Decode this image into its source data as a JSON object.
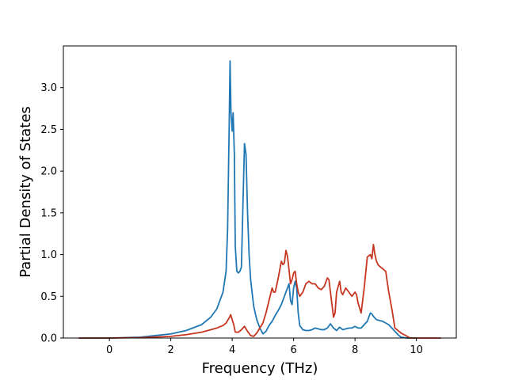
{
  "chart_data": {
    "type": "line",
    "xlabel": "Frequency (THz)",
    "ylabel": "Partial Density of States",
    "xlim": [
      -1.5,
      11.3
    ],
    "ylim": [
      0,
      3.5
    ],
    "xticks": [
      0,
      2,
      4,
      6,
      8,
      10
    ],
    "xtick_labels": [
      "0",
      "2",
      "4",
      "6",
      "8",
      "10"
    ],
    "yticks": [
      0,
      0.5,
      1.0,
      1.5,
      2.0,
      2.5,
      3.0
    ],
    "ytick_labels": [
      "0.0",
      "0.5",
      "1.0",
      "1.5",
      "2.0",
      "2.5",
      "3.0"
    ],
    "grid": false,
    "series": [
      {
        "color": "#1f77b4",
        "x": [
          -1.0,
          0.0,
          1.0,
          2.0,
          2.5,
          3.0,
          3.3,
          3.5,
          3.7,
          3.8,
          3.85,
          3.9,
          3.93,
          3.96,
          4.0,
          4.03,
          4.07,
          4.1,
          4.15,
          4.2,
          4.25,
          4.3,
          4.35,
          4.4,
          4.45,
          4.5,
          4.55,
          4.6,
          4.7,
          4.8,
          4.9,
          5.0,
          5.1,
          5.2,
          5.3,
          5.4,
          5.5,
          5.6,
          5.7,
          5.8,
          5.85,
          5.9,
          5.95,
          6.0,
          6.05,
          6.1,
          6.15,
          6.2,
          6.3,
          6.4,
          6.5,
          6.6,
          6.7,
          6.8,
          6.9,
          7.0,
          7.1,
          7.2,
          7.3,
          7.4,
          7.5,
          7.6,
          7.7,
          7.8,
          7.9,
          8.0,
          8.1,
          8.2,
          8.3,
          8.4,
          8.5,
          8.55,
          8.6,
          8.7,
          8.8,
          8.9,
          9.0,
          9.1,
          9.2,
          9.3,
          9.4,
          9.5,
          9.7,
          10.0
        ],
        "y": [
          0.0,
          0.0,
          0.01,
          0.05,
          0.09,
          0.16,
          0.25,
          0.35,
          0.55,
          0.8,
          1.3,
          2.5,
          3.32,
          2.7,
          2.48,
          2.7,
          2.2,
          1.1,
          0.8,
          0.78,
          0.8,
          0.85,
          1.6,
          2.33,
          2.2,
          1.5,
          1.0,
          0.7,
          0.38,
          0.22,
          0.12,
          0.05,
          0.08,
          0.15,
          0.2,
          0.27,
          0.33,
          0.4,
          0.5,
          0.6,
          0.65,
          0.45,
          0.4,
          0.6,
          0.68,
          0.6,
          0.3,
          0.15,
          0.1,
          0.09,
          0.09,
          0.1,
          0.12,
          0.11,
          0.1,
          0.1,
          0.12,
          0.17,
          0.12,
          0.09,
          0.13,
          0.1,
          0.11,
          0.12,
          0.12,
          0.14,
          0.12,
          0.12,
          0.16,
          0.2,
          0.3,
          0.29,
          0.26,
          0.22,
          0.21,
          0.2,
          0.18,
          0.16,
          0.12,
          0.08,
          0.04,
          0.01,
          0.0,
          0.0
        ]
      },
      {
        "color": "#c63520",
        "x": [
          -1.0,
          0.0,
          1.0,
          2.0,
          2.5,
          3.0,
          3.3,
          3.5,
          3.7,
          3.8,
          3.9,
          3.95,
          4.0,
          4.05,
          4.1,
          4.2,
          4.3,
          4.4,
          4.5,
          4.6,
          4.7,
          4.8,
          4.9,
          5.0,
          5.1,
          5.2,
          5.3,
          5.35,
          5.4,
          5.5,
          5.6,
          5.65,
          5.7,
          5.75,
          5.8,
          5.85,
          5.9,
          5.95,
          6.0,
          6.05,
          6.1,
          6.15,
          6.2,
          6.3,
          6.4,
          6.5,
          6.6,
          6.7,
          6.8,
          6.9,
          7.0,
          7.1,
          7.15,
          7.2,
          7.3,
          7.35,
          7.4,
          7.5,
          7.55,
          7.6,
          7.7,
          7.8,
          7.9,
          8.0,
          8.05,
          8.1,
          8.2,
          8.3,
          8.4,
          8.5,
          8.55,
          8.6,
          8.65,
          8.7,
          8.75,
          8.8,
          8.9,
          9.0,
          9.1,
          9.2,
          9.3,
          9.5,
          9.7,
          9.8,
          10.0,
          10.5,
          10.8
        ],
        "y": [
          0.0,
          0.0,
          0.005,
          0.02,
          0.04,
          0.07,
          0.1,
          0.12,
          0.15,
          0.18,
          0.24,
          0.28,
          0.22,
          0.16,
          0.07,
          0.07,
          0.1,
          0.14,
          0.08,
          0.03,
          0.02,
          0.06,
          0.12,
          0.18,
          0.3,
          0.45,
          0.6,
          0.55,
          0.55,
          0.72,
          0.92,
          0.88,
          0.9,
          1.05,
          0.98,
          0.82,
          0.65,
          0.7,
          0.78,
          0.8,
          0.65,
          0.55,
          0.5,
          0.55,
          0.65,
          0.68,
          0.65,
          0.65,
          0.6,
          0.58,
          0.62,
          0.72,
          0.7,
          0.55,
          0.25,
          0.3,
          0.55,
          0.68,
          0.55,
          0.52,
          0.6,
          0.55,
          0.5,
          0.55,
          0.52,
          0.42,
          0.3,
          0.6,
          0.97,
          1.0,
          0.95,
          1.12,
          1.0,
          0.92,
          0.88,
          0.86,
          0.83,
          0.8,
          0.55,
          0.35,
          0.12,
          0.06,
          0.02,
          0.0,
          0.0,
          0.0,
          0.0
        ]
      }
    ]
  }
}
